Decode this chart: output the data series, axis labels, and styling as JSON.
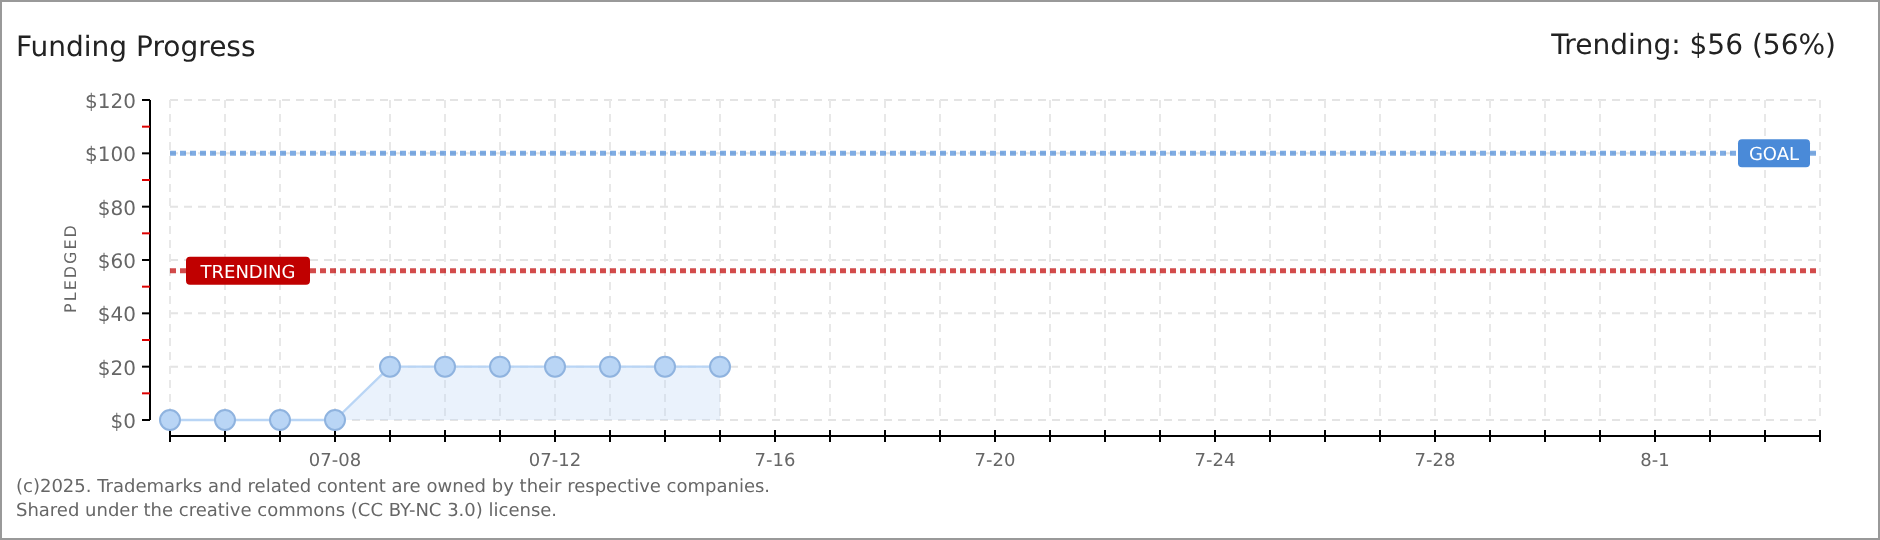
{
  "chart_data": {
    "type": "area",
    "title": "Funding Progress",
    "subtitle": "Trending: $56 (56%)",
    "ylabel": "PLEDGED",
    "x": [
      "--07-05",
      "--07-06",
      "--07-07",
      "--07-08",
      "--07-09",
      "--07-10",
      "--07-11",
      "--07-12",
      "--07-13",
      "--07-14",
      "--07-15"
    ],
    "series": [
      {
        "color": "#b9d5f5",
        "values": [
          0,
          0,
          0,
          0,
          20,
          20,
          20,
          20,
          20,
          20,
          20
        ]
      }
    ],
    "xlim": [
      "--07-05",
      "--08-04"
    ],
    "xticks": [
      {
        "value": "--07-05",
        "label": null
      },
      {
        "value": "--07-06",
        "label": null
      },
      {
        "value": "--07-07",
        "label": null
      },
      {
        "value": "--07-08",
        "label": "07-08"
      },
      {
        "value": "--07-09",
        "label": null
      },
      {
        "value": "--07-10",
        "label": null
      },
      {
        "value": "--07-11",
        "label": null
      },
      {
        "value": "--07-12",
        "label": "07-12"
      },
      {
        "value": "--07-13",
        "label": null
      },
      {
        "value": "--07-14",
        "label": null
      },
      {
        "value": "--07-15",
        "label": null
      },
      {
        "value": "--07-16",
        "label": "7-16"
      },
      {
        "value": "--07-17",
        "label": null
      },
      {
        "value": "--07-18",
        "label": null
      },
      {
        "value": "--07-19",
        "label": null
      },
      {
        "value": "--07-20",
        "label": "7-20"
      },
      {
        "value": "--07-21",
        "label": null
      },
      {
        "value": "--07-22",
        "label": null
      },
      {
        "value": "--07-23",
        "label": null
      },
      {
        "value": "--07-24",
        "label": "7-24"
      },
      {
        "value": "--07-25",
        "label": null
      },
      {
        "value": "--07-26",
        "label": null
      },
      {
        "value": "--07-27",
        "label": null
      },
      {
        "value": "--07-28",
        "label": "7-28"
      },
      {
        "value": "--07-29",
        "label": null
      },
      {
        "value": "--07-30",
        "label": null
      },
      {
        "value": "--07-31",
        "label": null
      },
      {
        "value": "--08-01",
        "label": "8-1"
      },
      {
        "value": "--08-02",
        "label": null
      },
      {
        "value": "--08-03",
        "label": null
      },
      {
        "value": "--08-04",
        "label": null
      }
    ],
    "ylim": [
      0,
      120
    ],
    "yticks": [
      {
        "value": 0,
        "label": "$0"
      },
      {
        "value": 10,
        "label": null
      },
      {
        "value": 20,
        "label": "$20"
      },
      {
        "value": 30,
        "label": null
      },
      {
        "value": 40,
        "label": "$40"
      },
      {
        "value": 50,
        "label": null
      },
      {
        "value": 60,
        "label": "$60"
      },
      {
        "value": 70,
        "label": null
      },
      {
        "value": 80,
        "label": "$80"
      },
      {
        "value": 90,
        "label": null
      },
      {
        "value": 100,
        "label": "$100"
      },
      {
        "value": 110,
        "label": null
      },
      {
        "value": 120,
        "label": "$120"
      }
    ],
    "ref_lines": [
      {
        "axis": "y",
        "value": 100,
        "label": "GOAL",
        "color": "#4a8ad8",
        "line_style": "dotted"
      },
      {
        "axis": "y",
        "value": 56,
        "label": "TRENDING",
        "color": "#c00000",
        "line_style": "dotted"
      }
    ],
    "grid": true,
    "marker": "circle",
    "annotations": [
      "(c)2025. Trademarks and related content are owned by their respective companies.",
      "Shared under the creative commons (CC BY-NC 3.0) license."
    ]
  }
}
